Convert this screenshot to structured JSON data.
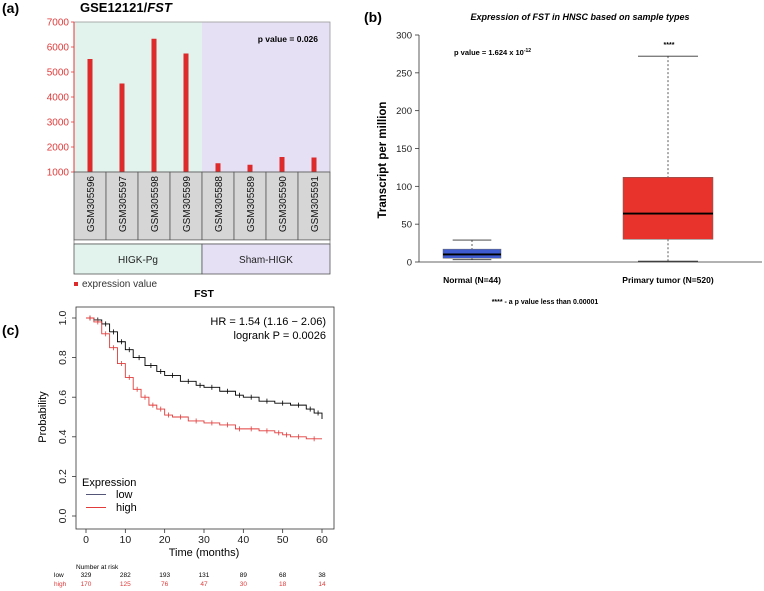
{
  "panels": {
    "a": "(a)",
    "b": "(b)",
    "c": "(c)"
  },
  "colors": {
    "bar_red": "#dd2a2a",
    "higk_bg": "#e2f3ee",
    "sham_bg": "#e6e0f5",
    "axis_red": "#e23a3a",
    "box_blue": "#3f5bd0",
    "box_red": "#e8332c",
    "km_low": "#000000",
    "km_high": "#e23b3b"
  },
  "chart_data": [
    {
      "type": "bar",
      "title_prefix": "GSE12121/",
      "title_gene": "FST",
      "pvalue_text": "p value = 0.026",
      "categories": [
        "GSM305596",
        "GSM305597",
        "GSM305598",
        "GSM305599",
        "GSM305588",
        "GSM305589",
        "GSM305590",
        "GSM305591"
      ],
      "values": [
        5520,
        4540,
        6330,
        5740,
        1350,
        1290,
        1600,
        1580
      ],
      "ylim": [
        1000,
        7000
      ],
      "yticks": [
        1000,
        2000,
        3000,
        4000,
        5000,
        6000,
        7000
      ],
      "groups": [
        {
          "name": "HIGK-Pg",
          "count": 4
        },
        {
          "name": "Sham-HIGK",
          "count": 4
        }
      ],
      "legend": "expression value",
      "xlabel": "FST"
    },
    {
      "type": "box",
      "title": "Expression of FST in HNSC based on sample types",
      "ylabel": "Transcript per million",
      "pvalue_prefix": "p value = 1.624 x 10",
      "pvalue_exp": "-12",
      "significance": "****",
      "footnote": "**** - a p value less than 0.00001",
      "ylim": [
        0,
        300
      ],
      "yticks": [
        0,
        50,
        100,
        150,
        200,
        250,
        300
      ],
      "boxes": [
        {
          "label": "Normal (N=44)",
          "min": 3,
          "q1": 5,
          "median": 10,
          "q3": 17,
          "max": 29
        },
        {
          "label": "Primary tumor (N=520)",
          "min": 1,
          "q1": 30,
          "median": 64,
          "q3": 112,
          "max": 272
        }
      ]
    },
    {
      "type": "line",
      "xlabel": "Time (months)",
      "ylabel": "Probability",
      "xlim": [
        0,
        60
      ],
      "ylim": [
        0,
        1
      ],
      "xticks": [
        0,
        10,
        20,
        30,
        40,
        50,
        60
      ],
      "yticks": [
        0.0,
        0.2,
        0.4,
        0.6,
        0.8,
        1.0
      ],
      "ytick_labels": [
        "0.0",
        "0.2",
        "0.4",
        "0.6",
        "0.8",
        "1.0"
      ],
      "hr_text": "HR = 1.54 (1.16 − 2.06)",
      "logrank_text": "logrank P = 0.0026",
      "legend_title": "Expression",
      "series": [
        {
          "name": "low",
          "x": [
            0,
            2,
            4,
            6,
            8,
            10,
            12,
            15,
            18,
            20,
            24,
            28,
            30,
            34,
            38,
            40,
            44,
            48,
            52,
            56,
            58,
            60
          ],
          "y": [
            1.0,
            0.99,
            0.97,
            0.93,
            0.88,
            0.84,
            0.8,
            0.76,
            0.73,
            0.71,
            0.68,
            0.66,
            0.65,
            0.63,
            0.61,
            0.6,
            0.58,
            0.57,
            0.56,
            0.54,
            0.52,
            0.49
          ]
        },
        {
          "name": "high",
          "x": [
            0,
            2,
            4,
            6,
            8,
            10,
            12,
            14,
            16,
            18,
            20,
            22,
            26,
            30,
            34,
            38,
            40,
            44,
            48,
            50,
            52,
            56,
            60
          ],
          "y": [
            1.0,
            0.98,
            0.92,
            0.85,
            0.77,
            0.7,
            0.64,
            0.6,
            0.56,
            0.54,
            0.51,
            0.5,
            0.48,
            0.47,
            0.46,
            0.44,
            0.44,
            0.43,
            0.42,
            0.41,
            0.4,
            0.39,
            0.39
          ]
        }
      ],
      "risk_table": {
        "title": "Number at risk",
        "rows": [
          {
            "name": "low",
            "values": [
              329,
              282,
              193,
              131,
              89,
              68,
              38
            ]
          },
          {
            "name": "high",
            "values": [
              170,
              125,
              76,
              47,
              30,
              18,
              14
            ]
          }
        ]
      }
    }
  ]
}
